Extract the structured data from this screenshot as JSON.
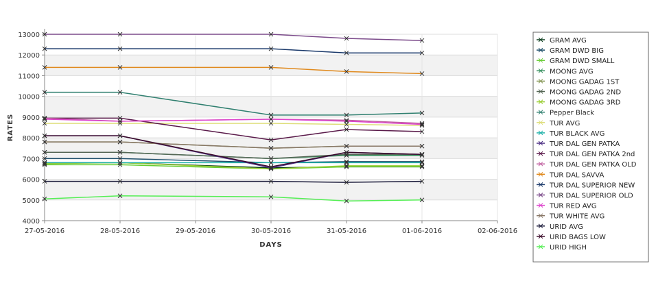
{
  "chart_data": {
    "type": "line",
    "title": "",
    "xlabel": "DAYS",
    "ylabel": "RATES",
    "x_ticks": [
      "27-05-2016",
      "28-05-2016",
      "29-05-2016",
      "30-05-2016",
      "31-05-2016",
      "01-06-2016",
      "02-06-2016"
    ],
    "x": [
      "27-05-2016",
      "28-05-2016",
      "30-05-2016",
      "31-05-2016",
      "01-06-2016"
    ],
    "ylim": [
      4000,
      13000
    ],
    "y_ticks": [
      4000,
      5000,
      6000,
      7000,
      8000,
      9000,
      10000,
      11000,
      12000,
      13000
    ],
    "grid": true,
    "legend_position": "right",
    "series": [
      {
        "name": "GRAM AVG",
        "color": "#0b3d1e",
        "values": [
          6800,
          6800,
          6550,
          6600,
          6600
        ]
      },
      {
        "name": "GRAM DWD BIG",
        "color": "#1f4f6b",
        "values": [
          7000,
          7000,
          6800,
          6850,
          6850
        ]
      },
      {
        "name": "GRAM DWD SMALL",
        "color": "#66cc33",
        "values": [
          6700,
          6700,
          6500,
          6600,
          6600
        ]
      },
      {
        "name": "MOONG AVG",
        "color": "#2e8b57",
        "values": [
          7300,
          7300,
          7000,
          7150,
          7150
        ]
      },
      {
        "name": "MOONG GADAG 1ST",
        "color": "#8a9a5b",
        "values": [
          7800,
          7800,
          7500,
          7600,
          7600
        ]
      },
      {
        "name": "MOONG GADAG 2ND",
        "color": "#556655",
        "values": [
          7300,
          7300,
          7000,
          7200,
          7200
        ]
      },
      {
        "name": "MOONG GADAG 3RD",
        "color": "#9acd32",
        "values": [
          6750,
          6800,
          6500,
          6650,
          6650
        ]
      },
      {
        "name": "Pepper Black",
        "color": "#2f7f6f",
        "values": [
          10200,
          10200,
          9100,
          9100,
          9200
        ]
      },
      {
        "name": "TUR AVG",
        "color": "#dddd77",
        "values": [
          8700,
          8700,
          8700,
          8650,
          8600
        ]
      },
      {
        "name": "TUR BLACK AVG",
        "color": "#20b2aa",
        "values": [
          6800,
          6800,
          6800,
          6800,
          6800
        ]
      },
      {
        "name": "TUR DAL GEN PATKA",
        "color": "#4b2e83",
        "values": [
          8100,
          8100,
          6550,
          7300,
          7200
        ]
      },
      {
        "name": "TUR DAL GEN PATKA 2nd",
        "color": "#5a1a4a",
        "values": [
          8950,
          8950,
          7900,
          8400,
          8300
        ]
      },
      {
        "name": "TUR DAL GEN PATKA OLD",
        "color": "#c05fa0",
        "values": [
          8950,
          8800,
          8900,
          8850,
          8700
        ]
      },
      {
        "name": "TUR DAL SAVVA",
        "color": "#e08a1e",
        "values": [
          11400,
          11400,
          11400,
          11200,
          11100
        ]
      },
      {
        "name": "TUR DAL SUPERIOR NEW",
        "color": "#1b3a6b",
        "values": [
          12300,
          12300,
          12300,
          12100,
          12100
        ]
      },
      {
        "name": "TUR DAL SUPERIOR OLD",
        "color": "#7b4a8a",
        "values": [
          13000,
          13000,
          13000,
          12800,
          12700
        ]
      },
      {
        "name": "TUR RED AVG",
        "color": "#dd44cc",
        "values": [
          8900,
          8800,
          8900,
          8800,
          8650
        ]
      },
      {
        "name": "TUR WHITE AVG",
        "color": "#887766",
        "values": [
          7800,
          7800,
          7500,
          7600,
          7600
        ]
      },
      {
        "name": "URID AVG",
        "color": "#1a1a3a",
        "values": [
          5900,
          5900,
          5900,
          5850,
          5900
        ]
      },
      {
        "name": "URID BAGS LOW",
        "color": "#3a0a2a",
        "values": [
          8100,
          8100,
          6600,
          7300,
          7200
        ]
      },
      {
        "name": "URID HIGH",
        "color": "#55ee55",
        "values": [
          5050,
          5200,
          5150,
          4950,
          5000
        ]
      }
    ]
  }
}
